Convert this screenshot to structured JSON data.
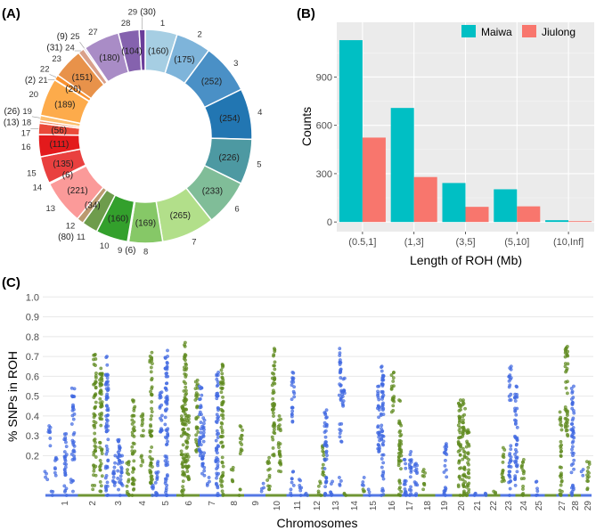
{
  "panels": {
    "a": "(A)",
    "b": "(B)",
    "c": "(C)"
  },
  "chart_data": [
    {
      "type": "pie",
      "subtype": "donut",
      "title": "(A)",
      "start": "top, clockwise",
      "slices": [
        {
          "label": "1",
          "value": 160,
          "value_label": "(160)",
          "color": "#a6cee3"
        },
        {
          "label": "2",
          "value": 175,
          "value_label": "(175)",
          "color": "#7eb4da"
        },
        {
          "label": "3",
          "value": 252,
          "value_label": "(252)",
          "color": "#4a90c6"
        },
        {
          "label": "4",
          "value": 254,
          "value_label": "(254)",
          "color": "#2276b2"
        },
        {
          "label": "5",
          "value": 226,
          "value_label": "(226)",
          "color": "#4d99a2"
        },
        {
          "label": "6",
          "value": 233,
          "value_label": "(233)",
          "color": "#80bd98"
        },
        {
          "label": "7",
          "value": 265,
          "value_label": "(265)",
          "color": "#b2df8a"
        },
        {
          "label": "8",
          "value": 169,
          "value_label": "(169)",
          "color": "#86c867"
        },
        {
          "label": "9",
          "value": 6,
          "value_label": "(6)",
          "color": "#5db347"
        },
        {
          "label": "10",
          "value": 160,
          "value_label": "(160)",
          "color": "#33a02c"
        },
        {
          "label": "11",
          "value": 80,
          "value_label": "(80)",
          "color": "#6e9c4c"
        },
        {
          "label": "12",
          "value": 34,
          "value_label": "(34)",
          "color": "#bb9a70"
        },
        {
          "label": "13",
          "value": 221,
          "value_label": "(221)",
          "color": "#fb9a99"
        },
        {
          "label": "14",
          "value": 6,
          "value_label": "(6)",
          "color": "#f47474"
        },
        {
          "label": "15",
          "value": 135,
          "value_label": "(135)",
          "color": "#e9403f"
        },
        {
          "label": "16",
          "value": 111,
          "value_label": "(111)",
          "color": "#e31a1c"
        },
        {
          "label": "17",
          "value": 56,
          "value_label": "(56)",
          "color": "#ea4a3a"
        },
        {
          "label": "18",
          "value": 13,
          "value_label": "(13)",
          "color": "#f5936a"
        },
        {
          "label": "19",
          "value": 26,
          "value_label": "(26)",
          "color": "#fdbf6f"
        },
        {
          "label": "20",
          "value": 189,
          "value_label": "(189)",
          "color": "#fdab4b"
        },
        {
          "label": "21",
          "value": 2,
          "value_label": "(2)",
          "color": "#ff7f00"
        },
        {
          "label": "22",
          "value": 26,
          "value_label": "(26)",
          "color": "#f9912f"
        },
        {
          "label": "23",
          "value": 151,
          "value_label": "(151)",
          "color": "#e8924a"
        },
        {
          "label": "24",
          "value": 31,
          "value_label": "(31)",
          "color": "#d9a08a"
        },
        {
          "label": "25",
          "value": 9,
          "value_label": "(9)",
          "color": "#cbb4d8"
        },
        {
          "label": "27",
          "value": 180,
          "value_label": "(180)",
          "color": "#a98cc6"
        },
        {
          "label": "28",
          "value": 104,
          "value_label": "(104)",
          "color": "#8562ae"
        },
        {
          "label": "29",
          "value": 30,
          "value_label": "(30)",
          "color": "#6a3d9a"
        }
      ]
    },
    {
      "type": "bar",
      "title": "(B)",
      "xlabel": "Length of ROH (Mb)",
      "ylabel": "Counts",
      "categories": [
        "(0.5,1]",
        "(1,3]",
        "(3,5]",
        "(5,10]",
        "(10,Inf]"
      ],
      "series": [
        {
          "name": "Maiwa",
          "color": "#00bfc4",
          "values": [
            1129,
            708,
            242,
            203,
            11
          ]
        },
        {
          "name": "Jiulong",
          "color": "#f8766d",
          "values": [
            524,
            279,
            94,
            97,
            5
          ]
        }
      ],
      "ylim": [
        -60,
        1240
      ],
      "yticks": [
        0,
        300,
        600,
        900
      ],
      "grid": true,
      "legend": "top-right"
    },
    {
      "type": "scatter",
      "title": "(C)",
      "xlabel": "Chromosomes",
      "ylabel": "% SNPs in ROH",
      "ylim": [
        0,
        1.0
      ],
      "yticks": [
        "0.2",
        "0.3",
        "0.4",
        "0.5",
        "0.6",
        "0.7",
        "0.8",
        "0.9",
        "1.0"
      ],
      "xticks": [
        "1",
        "2",
        "3",
        "4",
        "5",
        "6",
        "7",
        "8",
        "9",
        "10",
        "11",
        "12",
        "13",
        "14",
        "15",
        "16",
        "17",
        "18",
        "19",
        "20",
        "21",
        "22",
        "23",
        "24",
        "25",
        "27",
        "28",
        "29"
      ],
      "colors": {
        "odd": "#4169e1",
        "even": "#5f8a1f"
      },
      "clusters_note": "each cluster: [chromosome position, y min, y max, colour group]",
      "clusters": [
        [
          0.41,
          0.08,
          0.12,
          "odd"
        ],
        [
          0.52,
          0.25,
          0.35,
          "odd"
        ],
        [
          0.61,
          0,
          0.02,
          "odd"
        ],
        [
          0.72,
          0.1,
          0.19,
          "odd"
        ],
        [
          1.05,
          0,
          0.31,
          "odd"
        ],
        [
          1.28,
          0.02,
          0.08,
          "odd"
        ],
        [
          1.33,
          0.18,
          0.54,
          "odd"
        ],
        [
          2.06,
          0.03,
          0.05,
          "even"
        ],
        [
          2.12,
          0.1,
          0.71,
          "even"
        ],
        [
          2.36,
          0.02,
          0.64,
          "even"
        ],
        [
          2.59,
          0,
          0.7,
          "odd"
        ],
        [
          2.87,
          0.05,
          0.2,
          "odd"
        ],
        [
          3.06,
          0,
          0.28,
          "odd"
        ],
        [
          3.16,
          0.05,
          0.2,
          "odd"
        ],
        [
          3.43,
          0,
          0.17,
          "even"
        ],
        [
          3.66,
          0,
          0.48,
          "even"
        ],
        [
          3.99,
          0.15,
          0.2,
          "even"
        ],
        [
          4.02,
          0.3,
          0.41,
          "even"
        ],
        [
          4.41,
          0.06,
          0.72,
          "even"
        ],
        [
          4.46,
          0,
          0.05,
          "odd"
        ],
        [
          4.66,
          0,
          0.17,
          "odd"
        ],
        [
          4.84,
          0.32,
          0.52,
          "odd"
        ],
        [
          5.07,
          0,
          0.73,
          "odd"
        ],
        [
          5.77,
          0,
          0.45,
          "even"
        ],
        [
          5.88,
          0.1,
          0.77,
          "even"
        ],
        [
          5.99,
          0.08,
          0.4,
          "even"
        ],
        [
          6.38,
          0.22,
          0.58,
          "even"
        ],
        [
          6.54,
          0.2,
          0.55,
          "odd"
        ],
        [
          6.66,
          0.1,
          0.39,
          "odd"
        ],
        [
          6.88,
          0.05,
          0.09,
          "odd"
        ],
        [
          7.27,
          0,
          0.62,
          "odd"
        ],
        [
          7.49,
          0,
          0.66,
          "even"
        ],
        [
          7.93,
          0.07,
          0.14,
          "even"
        ],
        [
          8.28,
          0,
          0.03,
          "even"
        ],
        [
          8.37,
          0.21,
          0.35,
          "even"
        ],
        [
          9.37,
          0.02,
          0.06,
          "odd"
        ],
        [
          9.65,
          0.03,
          0.19,
          "even"
        ],
        [
          9.88,
          0.2,
          0.74,
          "even"
        ],
        [
          10.17,
          0.12,
          0.4,
          "even"
        ],
        [
          10.7,
          0,
          0.03,
          "odd"
        ],
        [
          10.82,
          0.37,
          0.62,
          "odd"
        ],
        [
          10.82,
          0.05,
          0.12,
          "odd"
        ],
        [
          11.2,
          0,
          0.08,
          "odd"
        ],
        [
          11.5,
          0,
          0.01,
          "odd"
        ],
        [
          12.18,
          0,
          0.07,
          "even"
        ],
        [
          12.4,
          0.1,
          0.25,
          "even"
        ],
        [
          12.5,
          0,
          0.43,
          "odd"
        ],
        [
          12.82,
          0,
          0.07,
          "odd"
        ],
        [
          13.3,
          0.05,
          0.09,
          "odd"
        ],
        [
          13.3,
          0.27,
          0.36,
          "odd"
        ],
        [
          13.3,
          0.48,
          0.74,
          "odd"
        ],
        [
          13.45,
          0.45,
          0.59,
          "odd"
        ],
        [
          13.53,
          0,
          0.01,
          "even"
        ],
        [
          14.5,
          0.02,
          0.03,
          "even"
        ],
        [
          14.53,
          0.05,
          0.09,
          "odd"
        ],
        [
          14.83,
          0,
          0.03,
          "odd"
        ],
        [
          15.33,
          0.22,
          0.55,
          "odd"
        ],
        [
          15.53,
          0,
          0.65,
          "odd"
        ],
        [
          16.1,
          0.42,
          0.62,
          "even"
        ],
        [
          16.5,
          0,
          0.48,
          "even"
        ],
        [
          16.8,
          0,
          0.18,
          "odd"
        ],
        [
          17.1,
          0,
          0.22,
          "odd"
        ],
        [
          17.4,
          0,
          0.16,
          "odd"
        ],
        [
          17.85,
          0.03,
          0.13,
          "even"
        ],
        [
          19.1,
          0,
          0.26,
          "odd"
        ],
        [
          19.95,
          0,
          0.48,
          "even"
        ],
        [
          20.2,
          0,
          0.48,
          "even"
        ],
        [
          20.45,
          0,
          0.33,
          "even"
        ],
        [
          20.95,
          0,
          0.01,
          "odd"
        ],
        [
          21.6,
          0,
          0.01,
          "odd"
        ],
        [
          22.1,
          0.01,
          0.02,
          "even"
        ],
        [
          22.7,
          0.07,
          0.24,
          "even"
        ],
        [
          23.15,
          0.48,
          0.65,
          "odd"
        ],
        [
          23.15,
          0,
          0.25,
          "odd"
        ],
        [
          23.55,
          0.05,
          0.55,
          "odd"
        ],
        [
          24.0,
          0,
          0.18,
          "even"
        ],
        [
          24.95,
          0,
          0.07,
          "odd"
        ],
        [
          26.95,
          0,
          0.27,
          "even"
        ],
        [
          26.95,
          0.33,
          0.42,
          "even"
        ],
        [
          27.4,
          0.3,
          0.75,
          "even"
        ],
        [
          27.85,
          0,
          0.55,
          "odd"
        ],
        [
          28.6,
          0.1,
          0.13,
          "odd"
        ],
        [
          29.1,
          0.03,
          0.17,
          "even"
        ]
      ]
    }
  ]
}
